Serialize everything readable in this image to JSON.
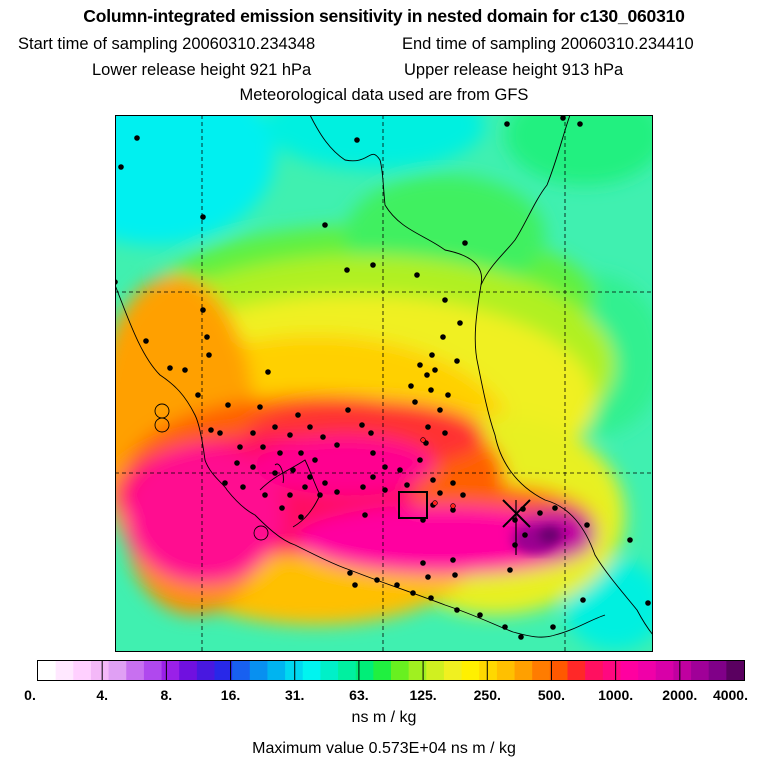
{
  "chart_data": {
    "type": "heatmap",
    "title": "Column-integrated emission sensitivity in nested domain for c130_060310",
    "subtitle": [
      "Start time of sampling 20060310.234348",
      "End time of sampling 20060310.234410",
      "Lower release height  921 hPa",
      "Upper release height  913 hPa",
      "Meteorological data used are from GFS"
    ],
    "colorbar": {
      "unit": "ns m / kg",
      "tick_labels": [
        "0.",
        "4.",
        "8.",
        "16.",
        "31.",
        "63.",
        "125.",
        "250.",
        "500.",
        "1000.",
        "2000.",
        "4000."
      ],
      "tick_values": [
        0,
        4,
        8,
        16,
        31,
        63,
        125,
        250,
        500,
        1000,
        2000,
        4000
      ],
      "colors": [
        "#ffffff",
        "#ffe8ff",
        "#ffd0ff",
        "#f4b8f8",
        "#e0a0f4",
        "#c870f0",
        "#b048ee",
        "#9a20e8",
        "#7010e0",
        "#4818e0",
        "#2828e8",
        "#1860f0",
        "#0890f0",
        "#00b4f0",
        "#00d8f0",
        "#00f4f0",
        "#00f0c8",
        "#00f0a0",
        "#00ee78",
        "#20f040",
        "#68f020",
        "#a0f020",
        "#d0f020",
        "#f0f020",
        "#fff000",
        "#ffd800",
        "#ffc000",
        "#ffa000",
        "#ff7c00",
        "#ff5800",
        "#ff2828",
        "#ff1060",
        "#ff0880",
        "#ff00a0",
        "#f000a8",
        "#d800a8",
        "#c000a0",
        "#a00098",
        "#800088",
        "#5a0060"
      ]
    },
    "max_value": 5730,
    "max_value_label": "Maximum value  0.573E+04 ns m / kg",
    "colors": {
      "background_low": "#00f0f0",
      "mid": "#80f040",
      "high": "#ffb000",
      "peak": "#ff00a0"
    }
  }
}
